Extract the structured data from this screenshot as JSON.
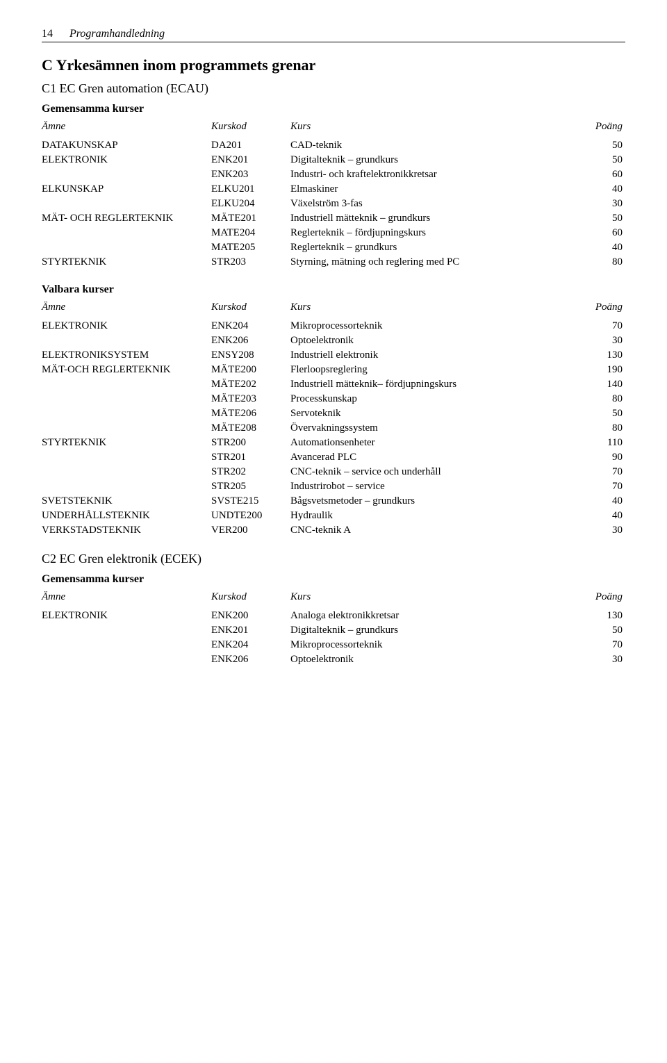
{
  "page_number": "14",
  "header_title": "Programhandledning",
  "main_heading": "C Yrkesämnen inom programmets grenar",
  "sections": [
    {
      "heading": "C1 EC Gren automation (ECAU)",
      "groups": [
        {
          "label": "Gemensamma kurser",
          "headers": {
            "amne": "Ämne",
            "kurskod": "Kurskod",
            "kurs": "Kurs",
            "poang": "Poäng"
          },
          "rows": [
            {
              "amne": "DATAKUNSKAP",
              "kurskod": "DA201",
              "kurs": "CAD-teknik",
              "poang": "50"
            },
            {
              "amne": "ELEKTRONIK",
              "kurskod": "ENK201",
              "kurs": "Digitalteknik – grundkurs",
              "poang": "50"
            },
            {
              "amne": "",
              "kurskod": "ENK203",
              "kurs": "Industri- och kraftelektronikkretsar",
              "poang": "60"
            },
            {
              "amne": "ELKUNSKAP",
              "kurskod": "ELKU201",
              "kurs": "Elmaskiner",
              "poang": "40"
            },
            {
              "amne": "",
              "kurskod": "ELKU204",
              "kurs": "Växelström 3-fas",
              "poang": "30"
            },
            {
              "amne": "MÄT- OCH REGLERTEKNIK",
              "kurskod": "MÄTE201",
              "kurs": "Industriell mätteknik – grundkurs",
              "poang": "50"
            },
            {
              "amne": "",
              "kurskod": "MATE204",
              "kurs": "Reglerteknik – fördjupningskurs",
              "poang": "60"
            },
            {
              "amne": "",
              "kurskod": "MATE205",
              "kurs": "Reglerteknik – grundkurs",
              "poang": "40"
            },
            {
              "amne": "STYRTEKNIK",
              "kurskod": "STR203",
              "kurs": "Styrning, mätning och reglering med PC",
              "poang": "80"
            }
          ]
        },
        {
          "label": "Valbara kurser",
          "headers": {
            "amne": "Ämne",
            "kurskod": "Kurskod",
            "kurs": "Kurs",
            "poang": "Poäng"
          },
          "rows": [
            {
              "amne": "ELEKTRONIK",
              "kurskod": "ENK204",
              "kurs": "Mikroprocessorteknik",
              "poang": "70"
            },
            {
              "amne": "",
              "kurskod": "ENK206",
              "kurs": "Optoelektronik",
              "poang": "30"
            },
            {
              "amne": "ELEKTRONIKSYSTEM",
              "kurskod": "ENSY208",
              "kurs": "Industriell elektronik",
              "poang": "130"
            },
            {
              "amne": "MÄT-OCH REGLERTEKNIK",
              "kurskod": "MÄTE200",
              "kurs": "Flerloopsreglering",
              "poang": "190"
            },
            {
              "amne": "",
              "kurskod": "MÄTE202",
              "kurs": "Industriell mätteknik– fördjupningskurs",
              "poang": "140"
            },
            {
              "amne": "",
              "kurskod": "MÄTE203",
              "kurs": "Processkunskap",
              "poang": "80"
            },
            {
              "amne": "",
              "kurskod": "MÄTE206",
              "kurs": "Servoteknik",
              "poang": "50"
            },
            {
              "amne": "",
              "kurskod": "MÄTE208",
              "kurs": "Övervakningssystem",
              "poang": "80"
            },
            {
              "amne": "STYRTEKNIK",
              "kurskod": "STR200",
              "kurs": "Automationsenheter",
              "poang": "110"
            },
            {
              "amne": "",
              "kurskod": "STR201",
              "kurs": "Avancerad PLC",
              "poang": "90"
            },
            {
              "amne": "",
              "kurskod": "STR202",
              "kurs": "CNC-teknik – service och underhåll",
              "poang": "70"
            },
            {
              "amne": "",
              "kurskod": "STR205",
              "kurs": "Industrirobot – service",
              "poang": "70"
            },
            {
              "amne": "SVETSTEKNIK",
              "kurskod": "SVSTE215",
              "kurs": "Bågsvetsmetoder – grundkurs",
              "poang": "40"
            },
            {
              "amne": "UNDERHÅLLSTEKNIK",
              "kurskod": "UNDTE200",
              "kurs": "Hydraulik",
              "poang": "40"
            },
            {
              "amne": "VERKSTADSTEKNIK",
              "kurskod": "VER200",
              "kurs": "CNC-teknik A",
              "poang": "30"
            }
          ]
        }
      ]
    },
    {
      "heading": "C2 EC Gren elektronik (ECEK)",
      "groups": [
        {
          "label": "Gemensamma kurser",
          "headers": {
            "amne": "Ämne",
            "kurskod": "Kurskod",
            "kurs": "Kurs",
            "poang": "Poäng"
          },
          "rows": [
            {
              "amne": "ELEKTRONIK",
              "kurskod": "ENK200",
              "kurs": "Analoga elektronikkretsar",
              "poang": "130"
            },
            {
              "amne": "",
              "kurskod": "ENK201",
              "kurs": "Digitalteknik – grundkurs",
              "poang": "50"
            },
            {
              "amne": "",
              "kurskod": "ENK204",
              "kurs": "Mikroprocessorteknik",
              "poang": "70"
            },
            {
              "amne": "",
              "kurskod": "ENK206",
              "kurs": "Optoelektronik",
              "poang": "30"
            }
          ]
        }
      ]
    }
  ]
}
